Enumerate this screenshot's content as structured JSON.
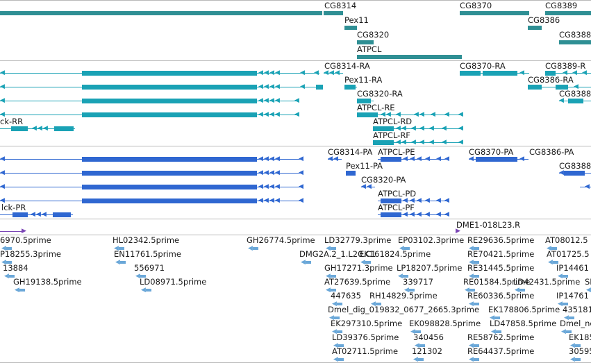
{
  "colors": {
    "gene": "#2f8f94",
    "transcript": "#1aa2b5",
    "protein": "#2f67d1",
    "clone": "#6aa7d8",
    "bac": "#7a45b5",
    "separator": "#b9b9b9"
  },
  "gene_track": {
    "labels": [
      "CG8314",
      "CG8370",
      "CG8389",
      "Pex11",
      "CG8386",
      "CG8320",
      "CG8388",
      "ATPCL"
    ]
  },
  "transcript_track": {
    "labels": [
      "CG8314-RA",
      "CG8370-RA",
      "CG8389-R",
      "Pex11-RA",
      "CG8386-RA",
      "CG8320-RA",
      "CG8388",
      "ATPCL-RE",
      "ck-RR",
      "ATPCL-RD",
      "ATPCL-RF"
    ]
  },
  "protein_track": {
    "labels": [
      "CG8314-PA",
      "ATPCL-PE",
      "CG8370-PA",
      "CG8386-PA",
      "Pex11-PA",
      "CG8388",
      "CG8320-PA",
      "ATPCL-PD",
      "lck-PR",
      "ATPCL-PF"
    ]
  },
  "bac_track": {
    "labels": [
      "DME1-018L23.R"
    ]
  },
  "clone_track": {
    "labels": [
      "6970.5prime",
      "HL02342.5prime",
      "GH26774.5prime",
      "LD32779.3prime",
      "EP03102.3prime",
      "RE29636.5prime",
      "AT08012.5",
      "P18255.3prime",
      "EN11761.5prime",
      "DMG2A.2_1.L20.C1",
      "EK161824.5prime",
      "RE70421.5prime",
      "AT01725.5",
      "13884",
      "556971",
      "GH17271.3prime",
      "LP18207.5prime",
      "RE31445.5prime",
      "IP14461",
      "GH19138.5prime",
      "LD08971.5prime",
      "AT27639.5prime",
      "339717",
      "RE01584.5prime",
      "LD42431.5prime",
      "SD",
      "447635",
      "RH14829.5prime",
      "RE60336.5prime",
      "IP14761",
      "Dmel_dig_019832_0677_2665.3prime",
      "EK178806.5prime",
      "435181",
      "EK297310.5prime",
      "EK098828.5prime",
      "LD47858.5prime",
      "Dmel_ne",
      "LD39376.5prime",
      "340456",
      "RE58762.5prime",
      "EK1854",
      "AT02711.5prime",
      "121302",
      "RE64437.5prime",
      "305956"
    ]
  }
}
